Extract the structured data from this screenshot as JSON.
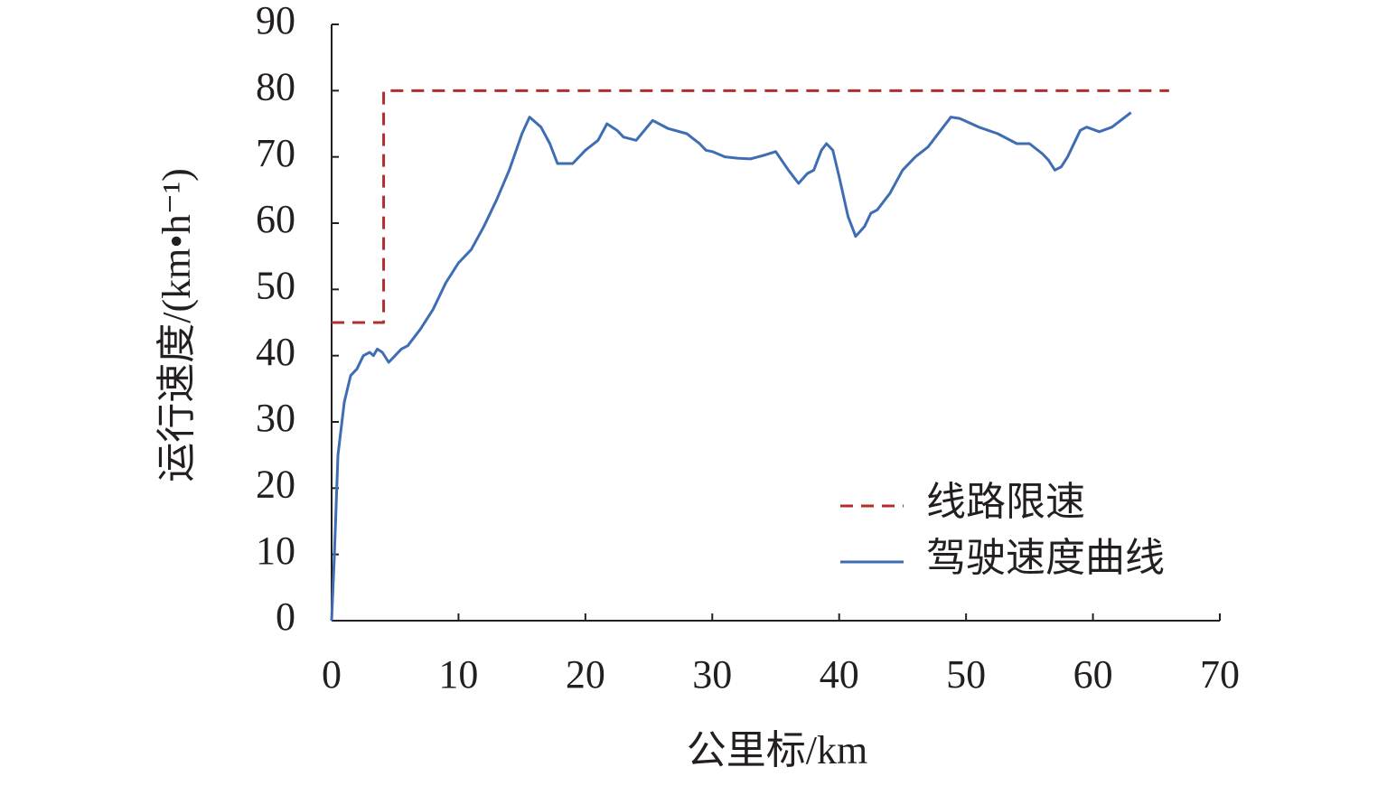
{
  "chart_data": {
    "type": "line",
    "xlabel": "公里标/km",
    "ylabel": "运行速度/(km•h⁻¹)",
    "xlim": [
      0,
      70
    ],
    "xticks": [
      0,
      10,
      20,
      30,
      40,
      50,
      60,
      70
    ],
    "ylim": [
      0,
      90
    ],
    "yticks": [
      0,
      10,
      20,
      30,
      40,
      50,
      60,
      70,
      80,
      90
    ],
    "legend": "lower right",
    "series": [
      {
        "name": "线路限速",
        "color": "#b22d2d",
        "style": "dashed",
        "x": [
          0,
          4.1,
          4.1,
          66
        ],
        "values": [
          45,
          45,
          80,
          80
        ]
      },
      {
        "name": "驾驶速度曲线",
        "color": "#3f6db3",
        "style": "solid",
        "x": [
          0,
          0.2,
          0.5,
          1,
          1.5,
          2,
          2.5,
          3,
          3.3,
          3.6,
          4,
          4.5,
          5,
          5.5,
          6,
          7,
          8,
          9,
          10,
          11,
          12,
          13,
          14,
          15,
          15.6,
          16.5,
          17.2,
          17.8,
          19,
          20,
          21,
          21.7,
          22.5,
          23,
          24,
          25.3,
          26.5,
          28,
          29,
          29.5,
          30,
          31,
          32,
          33,
          34,
          35,
          36,
          36.8,
          37.5,
          38,
          38.6,
          39,
          39.5,
          40,
          40.7,
          41.3,
          42,
          42.5,
          43,
          44,
          45,
          46,
          47,
          48,
          48.8,
          49.5,
          51,
          52.5,
          54,
          55,
          56,
          56.5,
          57,
          57.5,
          58,
          59,
          59.5,
          60.5,
          61.5,
          63
        ],
        "values": [
          0,
          9,
          25,
          33,
          37,
          38,
          40,
          40.5,
          40,
          41,
          40.5,
          39,
          40,
          41,
          41.5,
          44,
          47,
          51,
          54,
          56,
          59.5,
          63.5,
          68,
          73.5,
          76,
          74.5,
          72,
          69,
          69,
          71,
          72.5,
          75,
          74,
          73,
          72.5,
          75.5,
          74.3,
          73.5,
          72,
          71,
          70.8,
          70,
          69.8,
          69.7,
          70.2,
          70.8,
          68,
          66,
          67.5,
          68,
          71,
          72,
          71,
          67,
          61,
          58,
          59.5,
          61.5,
          62,
          64.5,
          68,
          70,
          71.5,
          74,
          76,
          75.8,
          74.5,
          73.5,
          72,
          72,
          70.5,
          69.5,
          68,
          68.5,
          70,
          74,
          74.5,
          73.8,
          74.5,
          76.7
        ]
      }
    ]
  }
}
